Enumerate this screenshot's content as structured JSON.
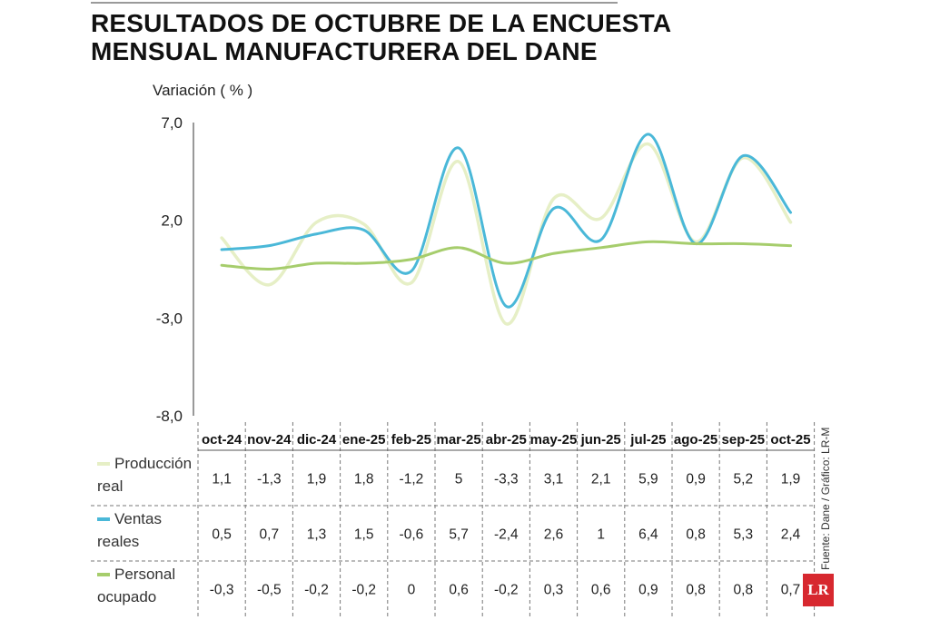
{
  "chart_data": {
    "type": "line",
    "title": "RESULTADOS DE OCTUBRE DE LA ENCUESTA MENSUAL MANUFACTURERA DEL DANE",
    "ylabel": "Variación ( % )",
    "xlabel": "",
    "ylim": [
      -8.0,
      7.0
    ],
    "yticks": [
      "7,0",
      "2,0",
      "-3,0",
      "-8,0"
    ],
    "ytick_values": [
      7,
      2,
      -3,
      -8
    ],
    "categories": [
      "oct-24",
      "nov-24",
      "dic-24",
      "ene-25",
      "feb-25",
      "mar-25",
      "abr-25",
      "may-25",
      "jun-25",
      "jul-25",
      "ago-25",
      "sep-25",
      "oct-25"
    ],
    "series": [
      {
        "name_lines": [
          "Producción",
          "real"
        ],
        "color": "#e6efc6",
        "values": [
          1.1,
          -1.3,
          1.9,
          1.8,
          -1.2,
          5,
          -3.3,
          3.1,
          2.1,
          5.9,
          0.9,
          5.2,
          1.9
        ],
        "labels": [
          "1,1",
          "-1,3",
          "1,9",
          "1,8",
          "-1,2",
          "5",
          "-3,3",
          "3,1",
          "2,1",
          "5,9",
          "0,9",
          "5,2",
          "1,9"
        ]
      },
      {
        "name_lines": [
          "Ventas",
          "reales"
        ],
        "color": "#4ab8d8",
        "values": [
          0.5,
          0.7,
          1.3,
          1.5,
          -0.6,
          5.7,
          -2.4,
          2.6,
          1,
          6.4,
          0.8,
          5.3,
          2.4
        ],
        "labels": [
          "0,5",
          "0,7",
          "1,3",
          "1,5",
          "-0,6",
          "5,7",
          "-2,4",
          "2,6",
          "1",
          "6,4",
          "0,8",
          "5,3",
          "2,4"
        ]
      },
      {
        "name_lines": [
          "Personal",
          "ocupado"
        ],
        "color": "#a6cd6c",
        "values": [
          -0.3,
          -0.5,
          -0.2,
          -0.2,
          0,
          0.6,
          -0.2,
          0.3,
          0.6,
          0.9,
          0.8,
          0.8,
          0.7
        ],
        "labels": [
          "-0,3",
          "-0,5",
          "-0,2",
          "-0,2",
          "0",
          "0,6",
          "-0,2",
          "0,3",
          "0,6",
          "0,9",
          "0,8",
          "0,8",
          "0,7"
        ]
      }
    ]
  },
  "source": "Fuente: Dane / Gráfico: LR-MB",
  "logo": "LR"
}
